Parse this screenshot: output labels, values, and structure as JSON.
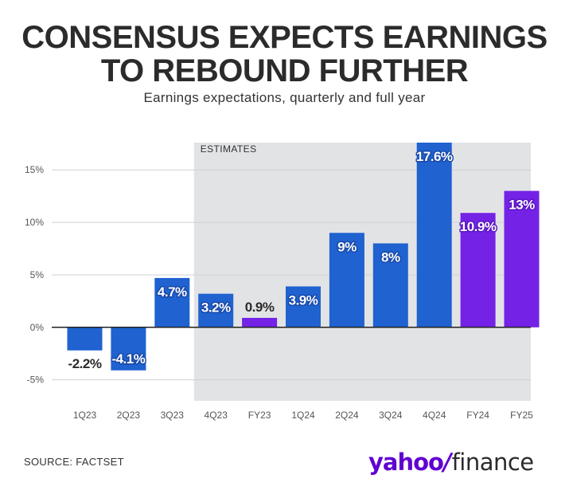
{
  "header": {
    "title_line1": "CONSENSUS EXPECTS EARNINGS",
    "title_line2": "TO REBOUND FURTHER",
    "subtitle": "Earnings expectations, quarterly and full year"
  },
  "footer": {
    "source": "SOURCE: FACTSET",
    "logo_word1": "yahoo",
    "logo_slash": "/",
    "logo_word2": "finance"
  },
  "colors": {
    "quarterly_bar": "#1f62d0",
    "full_year_bar": "#7422e6",
    "estimates_band": "#e2e3e5",
    "text": "#2b2b2b",
    "grid": "#cfd0d3"
  },
  "chart_data": {
    "type": "bar",
    "categories": [
      "1Q23",
      "2Q23",
      "3Q23",
      "4Q23",
      "FY23",
      "1Q24",
      "2Q24",
      "3Q24",
      "4Q24",
      "FY24",
      "FY25"
    ],
    "values": [
      -2.2,
      -4.1,
      4.7,
      3.2,
      0.9,
      3.9,
      9,
      8,
      17.6,
      10.9,
      13
    ],
    "data_labels": [
      "-2.2%",
      "-4.1%",
      "4.7%",
      "3.2%",
      "0.9%",
      "3.9%",
      "9%",
      "8%",
      "17.6%",
      "10.9%",
      "13%"
    ],
    "bar_kind": [
      "quarterly",
      "quarterly",
      "quarterly",
      "quarterly",
      "full-year",
      "quarterly",
      "quarterly",
      "quarterly",
      "quarterly",
      "full-year",
      "full-year"
    ],
    "y_ticks": [
      -5,
      0,
      5,
      10,
      15
    ],
    "y_tick_labels": [
      "-5%",
      "0%",
      "5%",
      "10%",
      "15%"
    ],
    "ylim": [
      -7,
      17.6
    ],
    "estimates_label": "ESTIMATES",
    "estimates_start_category": "4Q23",
    "grid": true
  }
}
